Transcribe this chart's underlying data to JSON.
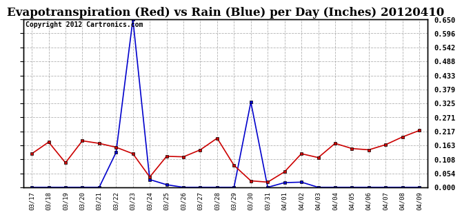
{
  "title": "Evapotranspiration (Red) vs Rain (Blue) per Day (Inches) 20120410",
  "copyright": "Copyright 2012 Cartronics.com",
  "x_labels": [
    "03/17",
    "03/18",
    "03/19",
    "03/20",
    "03/21",
    "03/22",
    "03/23",
    "03/24",
    "03/25",
    "03/26",
    "03/27",
    "03/28",
    "03/29",
    "03/30",
    "03/31",
    "04/01",
    "04/02",
    "04/03",
    "04/04",
    "04/05",
    "04/06",
    "04/07",
    "04/08",
    "04/09"
  ],
  "et_values": [
    0.13,
    0.175,
    0.095,
    0.18,
    0.17,
    0.155,
    0.13,
    0.04,
    0.12,
    0.118,
    0.145,
    0.19,
    0.085,
    0.025,
    0.02,
    0.06,
    0.13,
    0.115,
    0.17,
    0.15,
    0.145,
    0.165,
    0.195,
    0.22
  ],
  "rain_values": [
    0.0,
    0.0,
    0.0,
    0.0,
    0.0,
    0.135,
    0.65,
    0.03,
    0.01,
    0.0,
    0.0,
    0.0,
    0.0,
    0.33,
    0.0,
    0.018,
    0.02,
    0.0,
    0.0,
    0.0,
    0.0,
    0.0,
    0.0,
    0.0
  ],
  "et_color": "#cc0000",
  "rain_color": "#0000cc",
  "bg_color": "#ffffff",
  "grid_color": "#aaaaaa",
  "ylim": [
    0.0,
    0.65
  ],
  "yticks": [
    0.0,
    0.054,
    0.108,
    0.163,
    0.217,
    0.271,
    0.325,
    0.379,
    0.433,
    0.488,
    0.542,
    0.596,
    0.65
  ],
  "title_fontsize": 12,
  "copyright_fontsize": 7
}
